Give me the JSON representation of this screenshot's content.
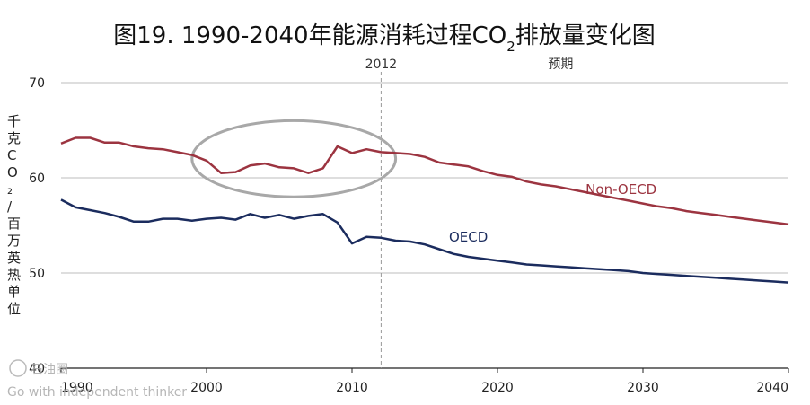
{
  "chart_data": {
    "type": "line",
    "title": {
      "main": "图19. 1990-2040年能源消耗过程CO",
      "sub": "2",
      "tail": "排放量变化图"
    },
    "ylabel": "千克CO₂/百万英热单位",
    "xlim": [
      1990,
      2040
    ],
    "ylim": [
      40,
      70
    ],
    "x_ticks": [
      1990,
      2000,
      2010,
      2020,
      2030,
      2040
    ],
    "y_ticks": [
      40,
      50,
      60,
      70
    ],
    "grid": "horizontal",
    "projection_line": {
      "x": 2012,
      "label": "2012",
      "right_label": "预期"
    },
    "highlight_ellipse": {
      "x_range": [
        1999,
        2013
      ],
      "y_range": [
        58,
        66
      ]
    },
    "series": [
      {
        "name": "Non-OECD",
        "color": "#9c3440",
        "x": [
          1990,
          1991,
          1992,
          1993,
          1994,
          1995,
          1996,
          1997,
          1998,
          1999,
          2000,
          2001,
          2002,
          2003,
          2004,
          2005,
          2006,
          2007,
          2008,
          2009,
          2010,
          2011,
          2012,
          2013,
          2014,
          2015,
          2016,
          2017,
          2018,
          2019,
          2020,
          2021,
          2022,
          2023,
          2024,
          2025,
          2026,
          2027,
          2028,
          2029,
          2030,
          2031,
          2032,
          2033,
          2034,
          2035,
          2036,
          2037,
          2038,
          2039,
          2040
        ],
        "values": [
          63.6,
          64.2,
          64.2,
          63.7,
          63.7,
          63.3,
          63.1,
          63.0,
          62.7,
          62.4,
          61.8,
          60.5,
          60.6,
          61.3,
          61.5,
          61.1,
          61.0,
          60.5,
          61.0,
          63.3,
          62.6,
          63.0,
          62.7,
          62.6,
          62.5,
          62.2,
          61.6,
          61.4,
          61.2,
          60.7,
          60.3,
          60.1,
          59.6,
          59.3,
          59.1,
          58.8,
          58.5,
          58.2,
          57.9,
          57.6,
          57.3,
          57.0,
          56.8,
          56.5,
          56.3,
          56.1,
          55.9,
          55.7,
          55.5,
          55.3,
          55.1
        ]
      },
      {
        "name": "OECD",
        "color": "#1b2c5e",
        "x": [
          1990,
          1991,
          1992,
          1993,
          1994,
          1995,
          1996,
          1997,
          1998,
          1999,
          2000,
          2001,
          2002,
          2003,
          2004,
          2005,
          2006,
          2007,
          2008,
          2009,
          2010,
          2011,
          2012,
          2013,
          2014,
          2015,
          2016,
          2017,
          2018,
          2019,
          2020,
          2021,
          2022,
          2023,
          2024,
          2025,
          2026,
          2027,
          2028,
          2029,
          2030,
          2031,
          2032,
          2033,
          2034,
          2035,
          2036,
          2037,
          2038,
          2039,
          2040
        ],
        "values": [
          57.7,
          56.9,
          56.6,
          56.3,
          55.9,
          55.4,
          55.4,
          55.7,
          55.7,
          55.5,
          55.7,
          55.8,
          55.6,
          56.2,
          55.8,
          56.1,
          55.7,
          56.0,
          56.2,
          55.3,
          53.1,
          53.8,
          53.7,
          53.4,
          53.3,
          53.0,
          52.5,
          52.0,
          51.7,
          51.5,
          51.3,
          51.1,
          50.9,
          50.8,
          50.7,
          50.6,
          50.5,
          50.4,
          50.3,
          50.2,
          50.0,
          49.9,
          49.8,
          49.7,
          49.6,
          49.5,
          49.4,
          49.3,
          49.2,
          49.1,
          49.0
        ]
      }
    ]
  },
  "watermark": {
    "brand": "石油圈",
    "tagline": "Go with independent thinker"
  }
}
